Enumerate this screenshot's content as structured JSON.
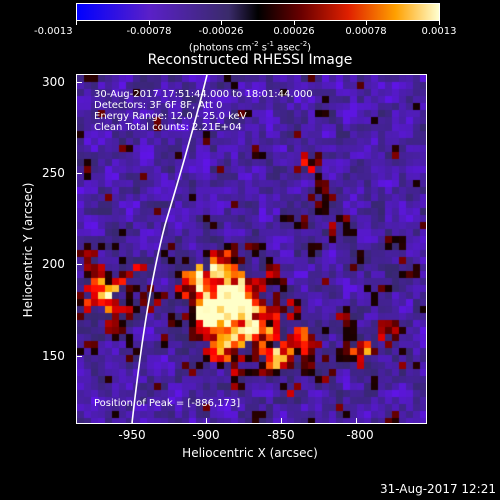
{
  "colorbar": {
    "labels": [
      "-0.0013",
      "-0.00078",
      "-0.00026",
      "0.00026",
      "0.00078",
      "0.0013"
    ],
    "units_main": "(photons cm",
    "units_exp1": "-2",
    "units_mid": " s",
    "units_exp2": "-1",
    "units_mid2": " asec",
    "units_exp3": "-2",
    "units_end": ")"
  },
  "title": "Reconstructed RHESSI Image",
  "annotation": {
    "line1": "30-Aug-2017 17:51:44.000 to 18:01:44.000",
    "line2": "Detectors: 3F 6F 8F, Att 0",
    "line3": "Energy Range: 12.0 - 25.0 keV",
    "line4": "Clean    Total counts: 2.21E+04",
    "peak": "Position of Peak = [-886,173]"
  },
  "axes": {
    "xlabel": "Heliocentric X (arcsec)",
    "ylabel": "Heliocentric Y (arcsec)",
    "xticks": [
      "-950",
      "-900",
      "-850",
      "-800"
    ],
    "yticks": [
      "300",
      "250",
      "200",
      "150"
    ]
  },
  "timestamp": "31-Aug-2017 12:21"
}
